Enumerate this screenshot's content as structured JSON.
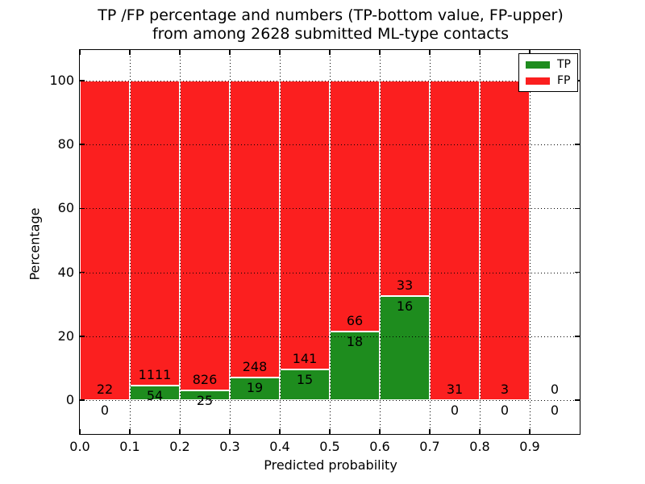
{
  "title": {
    "line1": "TP /FP percentage and numbers (TP-bottom value, FP-upper)",
    "line2": "from among 2628 submitted ML-type contacts"
  },
  "axes": {
    "x_label": "Predicted probability",
    "y_label": "Percentage",
    "x_tick_labels": [
      "0.0",
      "0.1",
      "0.2",
      "0.3",
      "0.4",
      "0.5",
      "0.6",
      "0.7",
      "0.8",
      "0.9"
    ],
    "y_tick_labels": [
      "0",
      "20",
      "40",
      "60",
      "80",
      "100"
    ]
  },
  "legend": {
    "items": [
      {
        "label": "TP",
        "color": "#1e8c1e"
      },
      {
        "label": "FP",
        "color": "#fb1f1f"
      }
    ]
  },
  "colors": {
    "tp": "#1e8c1e",
    "fp": "#fb1f1f",
    "bar_edge": "#ffffff",
    "grid": "#000000"
  },
  "chart_data": {
    "type": "bar",
    "stacked": true,
    "title": "TP /FP percentage and numbers (TP-bottom value, FP-upper) from among 2628 submitted ML-type contacts",
    "xlabel": "Predicted probability",
    "ylabel": "Percentage",
    "total_contacts": 2628,
    "bin_width": 0.1,
    "categories": [
      "0.0-0.1",
      "0.1-0.2",
      "0.2-0.3",
      "0.3-0.4",
      "0.4-0.5",
      "0.5-0.6",
      "0.6-0.7",
      "0.7-0.8",
      "0.8-0.9",
      "0.9-1.0"
    ],
    "series": [
      {
        "name": "TP",
        "color": "#1e8c1e",
        "counts": [
          0,
          54,
          25,
          19,
          15,
          18,
          16,
          0,
          0,
          0
        ],
        "percent_of_bin": [
          0,
          4.6,
          2.9,
          7.1,
          9.6,
          21.4,
          32.7,
          0,
          0,
          0
        ]
      },
      {
        "name": "FP",
        "color": "#fb1f1f",
        "counts": [
          22,
          1111,
          826,
          248,
          141,
          66,
          33,
          31,
          3,
          0
        ],
        "percent_of_bin": [
          100,
          95.4,
          97.1,
          92.9,
          90.4,
          78.6,
          67.3,
          100,
          100,
          0
        ]
      }
    ],
    "x_ticks": [
      0.0,
      0.1,
      0.2,
      0.3,
      0.4,
      0.5,
      0.6,
      0.7,
      0.8,
      0.9
    ],
    "y_ticks": [
      0,
      20,
      40,
      60,
      80,
      100
    ],
    "xlim": [
      0.0,
      1.0
    ],
    "ylim": [
      -11,
      110
    ],
    "grid": "dotted",
    "legend_position": "upper right"
  }
}
